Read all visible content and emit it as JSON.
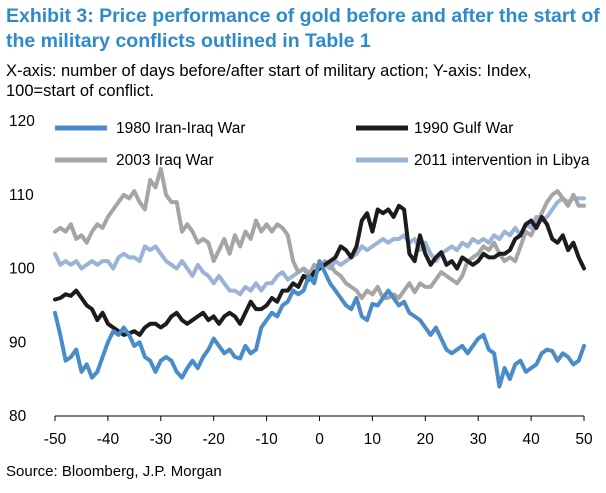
{
  "title": "Exhibit 3: Price performance of gold before and after the start of the military conflicts outlined in Table 1",
  "subtitle": "X-axis: number of days before/after start of military action; Y-axis: Index, 100=start of conflict.",
  "source": "Source: Bloomberg, J.P. Morgan",
  "chart_data": {
    "type": "line",
    "xlim": [
      -50,
      50
    ],
    "ylim": [
      80,
      120
    ],
    "xticks": [
      -50,
      -40,
      -30,
      -20,
      -10,
      0,
      10,
      20,
      30,
      40,
      50
    ],
    "yticks": [
      80,
      90,
      100,
      110,
      120
    ],
    "xtick_labels": [
      "-50",
      "-40",
      "-30",
      "-20",
      "-10",
      "0",
      "10",
      "20",
      "30",
      "40",
      "50"
    ],
    "ytick_labels": [
      "80",
      "90",
      "100",
      "110",
      "120"
    ],
    "grid": false,
    "legend": "top, two columns",
    "series": [
      {
        "name": "1980 Iran-Iraq War",
        "color": "#4a8cc8",
        "x": [
          -50,
          -49,
          -48,
          -47,
          -46,
          -45,
          -44,
          -43,
          -42,
          -41,
          -40,
          -39,
          -38,
          -37,
          -36,
          -35,
          -34,
          -33,
          -32,
          -31,
          -30,
          -29,
          -28,
          -27,
          -26,
          -25,
          -24,
          -23,
          -22,
          -21,
          -20,
          -19,
          -18,
          -17,
          -16,
          -15,
          -14,
          -13,
          -12,
          -11,
          -10,
          -9,
          -8,
          -7,
          -6,
          -5,
          -4,
          -3,
          -2,
          -1,
          0,
          1,
          2,
          3,
          4,
          5,
          6,
          7,
          8,
          9,
          10,
          11,
          12,
          13,
          14,
          15,
          16,
          17,
          18,
          19,
          20,
          21,
          22,
          23,
          24,
          25,
          26,
          27,
          28,
          29,
          30,
          31,
          32,
          33,
          34,
          35,
          36,
          37,
          38,
          39,
          40,
          41,
          42,
          43,
          44,
          45,
          46,
          47,
          48,
          49,
          50
        ],
        "values": [
          94,
          91,
          87.5,
          88,
          89,
          86,
          87,
          85.2,
          86,
          88,
          90,
          91.5,
          91,
          92,
          91,
          89.5,
          90,
          88,
          87.5,
          86,
          87.5,
          88,
          87.5,
          86,
          85.2,
          86.5,
          87.5,
          86.5,
          88,
          89,
          90.5,
          89.5,
          88.5,
          89,
          88,
          87.8,
          89.5,
          88.5,
          89,
          92,
          93,
          94,
          93.5,
          95,
          95.5,
          97,
          96.5,
          97,
          99,
          98,
          101,
          99.5,
          98,
          97,
          96,
          95,
          94.5,
          96,
          93.5,
          93,
          95.2,
          95,
          96,
          97,
          96,
          95,
          95.5,
          94,
          93.5,
          93,
          92,
          91,
          92,
          90.5,
          89,
          88.5,
          89,
          89.5,
          88.5,
          89.5,
          90.5,
          91,
          89,
          88.5,
          84,
          86.5,
          85,
          87,
          87.5,
          86,
          86.5,
          87,
          88.5,
          89,
          88.8,
          87.5,
          88.5,
          88,
          87,
          87.5,
          89.5
        ]
      },
      {
        "name": "1990 Gulf War",
        "color": "#1c1c1c",
        "x": [
          -50,
          -49,
          -48,
          -47,
          -46,
          -45,
          -44,
          -43,
          -42,
          -41,
          -40,
          -39,
          -38,
          -37,
          -36,
          -35,
          -34,
          -33,
          -32,
          -31,
          -30,
          -29,
          -28,
          -27,
          -26,
          -25,
          -24,
          -23,
          -22,
          -21,
          -20,
          -19,
          -18,
          -17,
          -16,
          -15,
          -14,
          -13,
          -12,
          -11,
          -10,
          -9,
          -8,
          -7,
          -6,
          -5,
          -4,
          -3,
          -2,
          -1,
          0,
          1,
          2,
          3,
          4,
          5,
          6,
          7,
          8,
          9,
          10,
          11,
          12,
          13,
          14,
          15,
          16,
          17,
          18,
          19,
          20,
          21,
          22,
          23,
          24,
          25,
          26,
          27,
          28,
          29,
          30,
          31,
          32,
          33,
          34,
          35,
          36,
          37,
          38,
          39,
          40,
          41,
          42,
          43,
          44,
          45,
          46,
          47,
          48,
          49,
          50
        ],
        "values": [
          95.8,
          96,
          96.5,
          96.3,
          97,
          96,
          95,
          94.5,
          93,
          94,
          92.5,
          92,
          91.5,
          91,
          91.2,
          91.5,
          91,
          92,
          92.5,
          92.5,
          92,
          92.5,
          93.5,
          94,
          93,
          92.5,
          93,
          93.5,
          94,
          93,
          93.5,
          92.5,
          93.5,
          94,
          93.5,
          92.5,
          94,
          95.5,
          94.5,
          94.5,
          95,
          96,
          95.5,
          97,
          97,
          98,
          97.5,
          99,
          98.5,
          99.5,
          100,
          100.5,
          101,
          101.5,
          103,
          102.5,
          101.5,
          103,
          106.5,
          107.5,
          105,
          108,
          107.5,
          108,
          107,
          108.5,
          108,
          102,
          101,
          104.5,
          102,
          100.5,
          101.5,
          102.2,
          100.5,
          101,
          100,
          101.5,
          101,
          100.5,
          101,
          102,
          101.5,
          101.5,
          102,
          102,
          102.5,
          104,
          104.5,
          106,
          106.5,
          105.5,
          107,
          106,
          104,
          103.5,
          104.5,
          102.5,
          103.5,
          101.5,
          100
        ]
      },
      {
        "name": "2003 Iraq War",
        "color": "#a5a5a5",
        "x": [
          -50,
          -49,
          -48,
          -47,
          -46,
          -45,
          -44,
          -43,
          -42,
          -41,
          -40,
          -39,
          -38,
          -37,
          -36,
          -35,
          -34,
          -33,
          -32,
          -31,
          -30,
          -29,
          -28,
          -27,
          -26,
          -25,
          -24,
          -23,
          -22,
          -21,
          -20,
          -19,
          -18,
          -17,
          -16,
          -15,
          -14,
          -13,
          -12,
          -11,
          -10,
          -9,
          -8,
          -7,
          -6,
          -5,
          -4,
          -3,
          -2,
          -1,
          0,
          1,
          2,
          3,
          4,
          5,
          6,
          7,
          8,
          9,
          10,
          11,
          12,
          13,
          14,
          15,
          16,
          17,
          18,
          19,
          20,
          21,
          22,
          23,
          24,
          25,
          26,
          27,
          28,
          29,
          30,
          31,
          32,
          33,
          34,
          35,
          36,
          37,
          38,
          39,
          40,
          41,
          42,
          43,
          44,
          45,
          46,
          47,
          48,
          49,
          50
        ],
        "values": [
          105,
          105.5,
          105,
          106,
          104,
          104.5,
          103.5,
          105,
          106,
          105.5,
          107,
          108,
          109,
          110,
          109.5,
          110.5,
          109,
          108,
          112,
          111,
          113.5,
          110,
          109,
          109,
          105,
          106,
          105,
          103.5,
          104,
          103.5,
          101,
          102.5,
          104,
          102,
          104.5,
          103,
          105,
          104,
          106.5,
          105,
          106,
          105,
          106,
          105.5,
          104.5,
          101,
          99.5,
          100,
          99,
          100.5,
          100,
          101,
          100.5,
          99.5,
          99,
          98,
          97.5,
          97,
          96,
          97,
          96.5,
          97.5,
          96,
          96,
          96.5,
          96,
          97,
          98,
          96.8,
          98,
          97.5,
          97.5,
          98.5,
          99.5,
          99,
          98.5,
          98,
          99,
          101,
          101.5,
          102,
          103,
          102.5,
          103.5,
          102,
          101,
          101.5,
          101,
          103,
          105,
          104.5,
          106,
          107.5,
          109,
          110,
          110.5,
          109.5,
          108.5,
          110,
          108.5,
          108.5
        ]
      },
      {
        "name": "2011 intervention in Libya",
        "color": "#9bb3d4",
        "x": [
          -50,
          -49,
          -48,
          -47,
          -46,
          -45,
          -44,
          -43,
          -42,
          -41,
          -40,
          -39,
          -38,
          -37,
          -36,
          -35,
          -34,
          -33,
          -32,
          -31,
          -30,
          -29,
          -28,
          -27,
          -26,
          -25,
          -24,
          -23,
          -22,
          -21,
          -20,
          -19,
          -18,
          -17,
          -16,
          -15,
          -14,
          -13,
          -12,
          -11,
          -10,
          -9,
          -8,
          -7,
          -6,
          -5,
          -4,
          -3,
          -2,
          -1,
          0,
          1,
          2,
          3,
          4,
          5,
          6,
          7,
          8,
          9,
          10,
          11,
          12,
          13,
          14,
          15,
          16,
          17,
          18,
          19,
          20,
          21,
          22,
          23,
          24,
          25,
          26,
          27,
          28,
          29,
          30,
          31,
          32,
          33,
          34,
          35,
          36,
          37,
          38,
          39,
          40,
          41,
          42,
          43,
          44,
          45,
          46,
          47,
          48,
          49,
          50
        ],
        "values": [
          102,
          100.5,
          101,
          100.5,
          101,
          100,
          100.5,
          101,
          100.5,
          101,
          101,
          100,
          101.5,
          102,
          101.5,
          101.5,
          101,
          103,
          102.5,
          103,
          102,
          101,
          100.5,
          100,
          101,
          100,
          99,
          100.5,
          99.5,
          99,
          98,
          99,
          98,
          97,
          97,
          96.5,
          97.5,
          97,
          98,
          97,
          98,
          98,
          99,
          99.5,
          98.5,
          99,
          99.5,
          100,
          99.5,
          99,
          100,
          100.5,
          100,
          101,
          100.5,
          101,
          101.5,
          102,
          103,
          102.5,
          103,
          103.5,
          104,
          103.5,
          104,
          104,
          104.5,
          103.5,
          104,
          102.5,
          103.5,
          102,
          101,
          102,
          102.5,
          103,
          102.5,
          103.5,
          103,
          104,
          103.5,
          104,
          103.5,
          104.5,
          104,
          105,
          104.5,
          105.5,
          104.5,
          106,
          105.5,
          107,
          106.5,
          107,
          108,
          109,
          109.5,
          109,
          109.5,
          109.5,
          109.5
        ]
      }
    ]
  }
}
